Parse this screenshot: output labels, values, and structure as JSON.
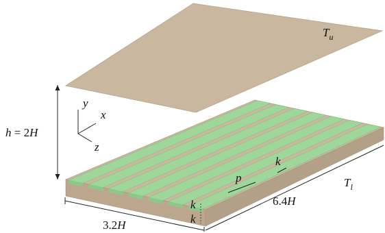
{
  "figure": {
    "upper_plate_label": "T",
    "upper_plate_sub": "u",
    "lower_plate_label": "T",
    "lower_plate_sub": "l",
    "height_label_h": "h",
    "height_label_rest": " = 2",
    "height_label_H": "H",
    "axis_x": "x",
    "axis_y": "y",
    "axis_z": "z",
    "width_num": "3.2",
    "width_H": "H",
    "length_num": "6.4",
    "length_H": "H",
    "pitch_label": "p",
    "rib_k_top": "k",
    "rib_k_side_1": "k",
    "rib_k_side_2": "k",
    "colors": {
      "plate": "#c9b7a0",
      "rib_green": "#9fd79a",
      "line": "#222222"
    },
    "rib_count": 7
  }
}
